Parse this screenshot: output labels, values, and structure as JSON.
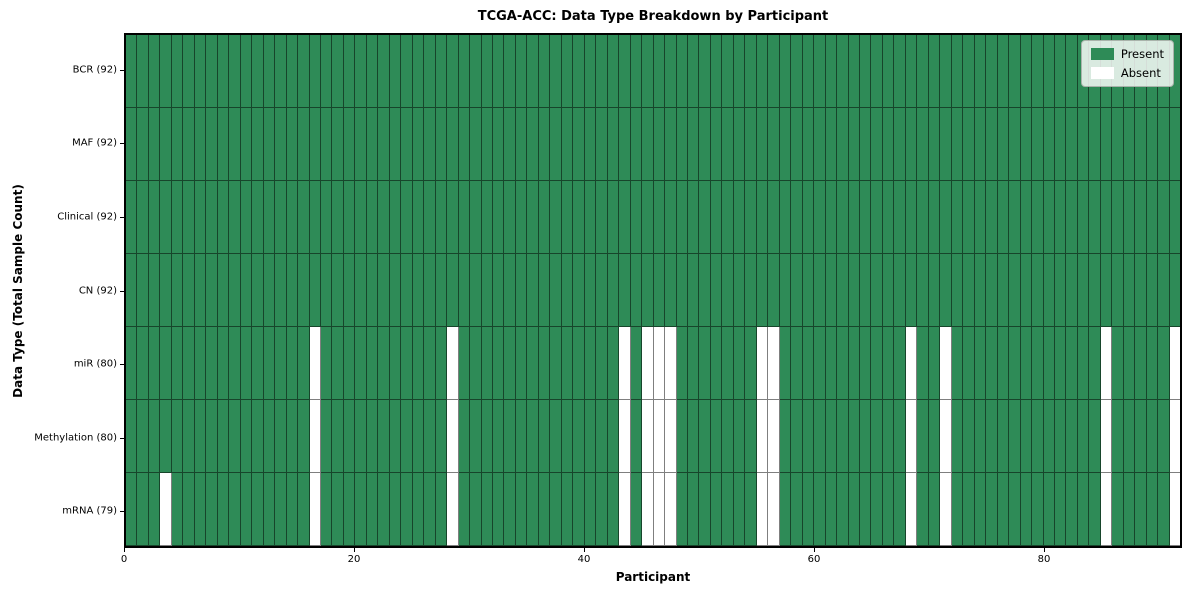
{
  "title": "TCGA-ACC: Data Type Breakdown by Participant",
  "colors": {
    "present": "#2e8b57",
    "absent": "#ffffff",
    "grid_line": "rgba(0,0,0,0.5)"
  },
  "chart_data": {
    "type": "heatmap",
    "title": "TCGA-ACC: Data Type Breakdown by Participant",
    "xlabel": "Participant",
    "ylabel": "Data Type (Total Sample Count)",
    "n_participants": 92,
    "x_range": [
      0,
      92
    ],
    "x_ticks": [
      0,
      20,
      40,
      60,
      80
    ],
    "grid": true,
    "legend_position": "upper right",
    "legend": [
      {
        "label": "Present",
        "color": "#2e8b57"
      },
      {
        "label": "Absent",
        "color": "#ffffff"
      }
    ],
    "rows": [
      {
        "label": "BCR (92)",
        "data_type": "BCR",
        "total_sample_count": 92,
        "absent_participants": []
      },
      {
        "label": "MAF (92)",
        "data_type": "MAF",
        "total_sample_count": 92,
        "absent_participants": []
      },
      {
        "label": "Clinical (92)",
        "data_type": "Clinical",
        "total_sample_count": 92,
        "absent_participants": []
      },
      {
        "label": "CN (92)",
        "data_type": "CN",
        "total_sample_count": 92,
        "absent_participants": []
      },
      {
        "label": "miR (80)",
        "data_type": "miR",
        "total_sample_count": 80,
        "absent_participants": [
          16,
          28,
          43,
          45,
          46,
          47,
          55,
          56,
          68,
          71,
          85,
          91
        ]
      },
      {
        "label": "Methylation (80)",
        "data_type": "Methylation",
        "total_sample_count": 80,
        "absent_participants": [
          16,
          28,
          43,
          45,
          46,
          47,
          55,
          56,
          68,
          71,
          85,
          91
        ]
      },
      {
        "label": "mRNA (79)",
        "data_type": "mRNA",
        "total_sample_count": 79,
        "absent_participants": [
          3,
          16,
          28,
          43,
          45,
          46,
          47,
          55,
          56,
          68,
          71,
          85,
          91
        ]
      }
    ]
  }
}
